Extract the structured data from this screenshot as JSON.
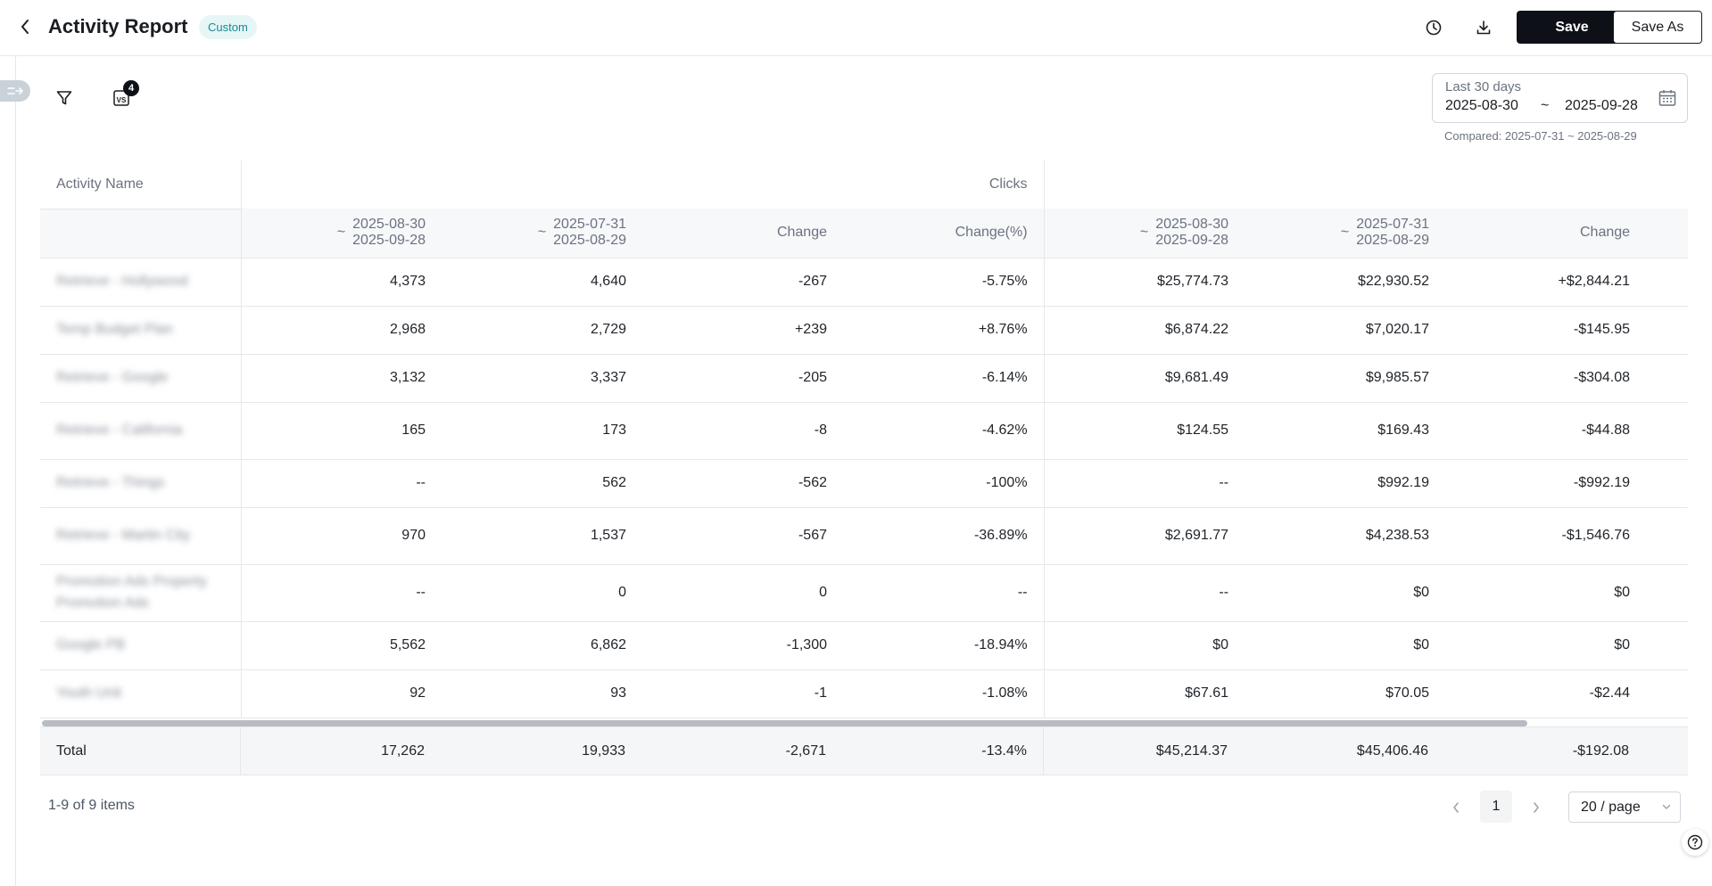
{
  "header": {
    "title": "Activity Report",
    "badge": "Custom",
    "save_label": "Save",
    "save_as_label": "Save As"
  },
  "toolbar": {
    "vs_count": "4",
    "date_range": {
      "label": "Last 30 days",
      "start": "2025-08-30",
      "separator": "~",
      "end": "2025-09-28",
      "compared": "Compared: 2025-07-31 ~ 2025-08-29"
    }
  },
  "table": {
    "name_header": "Activity Name",
    "group_header": "Clicks",
    "period_tilde": "~",
    "current": {
      "start": "2025-08-30",
      "end": "2025-09-28"
    },
    "previous": {
      "start": "2025-07-31",
      "end": "2025-08-29"
    },
    "change_header": "Change",
    "change_pct_header": "Change(%)",
    "rows": [
      {
        "name": "Retrieve - Hollywood",
        "c1": "4,373",
        "c2": "4,640",
        "c3": "-267",
        "c4": "-5.75%",
        "c5": "$25,774.73",
        "c6": "$22,930.52",
        "c7": "+$2,844.21",
        "tall": false
      },
      {
        "name": "Temp Budget Plan",
        "c1": "2,968",
        "c2": "2,729",
        "c3": "+239",
        "c4": "+8.76%",
        "c5": "$6,874.22",
        "c6": "$7,020.17",
        "c7": "-$145.95",
        "tall": false
      },
      {
        "name": "Retrieve - Google",
        "c1": "3,132",
        "c2": "3,337",
        "c3": "-205",
        "c4": "-6.14%",
        "c5": "$9,681.49",
        "c6": "$9,985.57",
        "c7": "-$304.08",
        "tall": false
      },
      {
        "name": "Retrieve - California",
        "c1": "165",
        "c2": "173",
        "c3": "-8",
        "c4": "-4.62%",
        "c5": "$124.55",
        "c6": "$169.43",
        "c7": "-$44.88",
        "tall": true
      },
      {
        "name": "Retrieve - Things",
        "c1": "--",
        "c2": "562",
        "c3": "-562",
        "c4": "-100%",
        "c5": "--",
        "c6": "$992.19",
        "c7": "-$992.19",
        "tall": false
      },
      {
        "name": "Retrieve - Martin City",
        "c1": "970",
        "c2": "1,537",
        "c3": "-567",
        "c4": "-36.89%",
        "c5": "$2,691.77",
        "c6": "$4,238.53",
        "c7": "-$1,546.76",
        "tall": true
      },
      {
        "name": "Promotion Ads Property Promotion Ads",
        "c1": "--",
        "c2": "0",
        "c3": "0",
        "c4": "--",
        "c5": "--",
        "c6": "$0",
        "c7": "$0",
        "tall": true
      },
      {
        "name": "Google PB",
        "c1": "5,562",
        "c2": "6,862",
        "c3": "-1,300",
        "c4": "-18.94%",
        "c5": "$0",
        "c6": "$0",
        "c7": "$0",
        "tall": false
      },
      {
        "name": "Youth Unit",
        "c1": "92",
        "c2": "93",
        "c3": "-1",
        "c4": "-1.08%",
        "c5": "$67.61",
        "c6": "$70.05",
        "c7": "-$2.44",
        "tall": false
      }
    ],
    "total": {
      "label": "Total",
      "c1": "17,262",
      "c2": "19,933",
      "c3": "-2,671",
      "c4": "-13.4%",
      "c5": "$45,214.37",
      "c6": "$45,406.46",
      "c7": "-$192.08"
    }
  },
  "pagination": {
    "summary": "1-9 of 9 items",
    "current_page": "1",
    "page_size": "20 / page"
  }
}
